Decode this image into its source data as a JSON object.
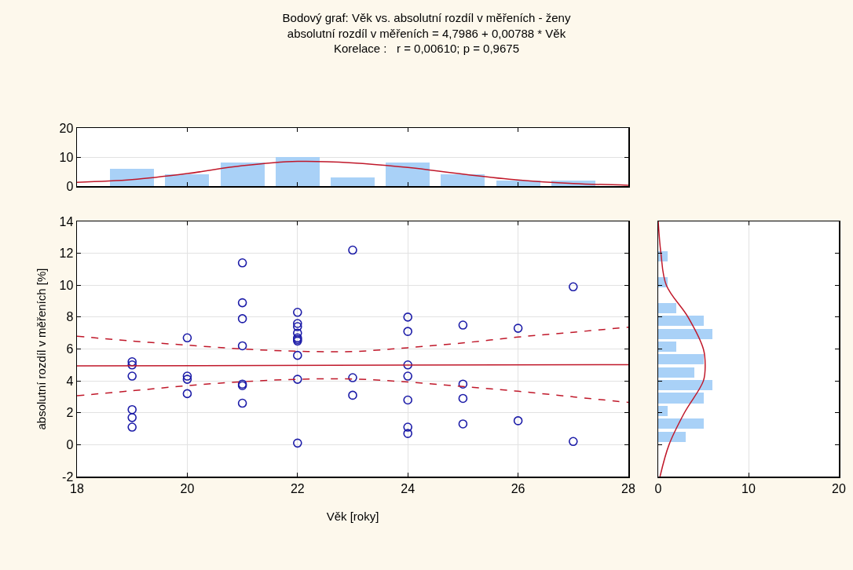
{
  "chart_data": [
    {
      "type": "histogram",
      "title": "Bodový graf: Věk vs. absolutní rozdíl v měřeních - ženy",
      "annotations": [
        "absolutní rozdíl v měřeních = 4,7986 + 0,00788 * Věk",
        "Korelace :   r = 0,00610; p = 0,9675"
      ],
      "bins": [
        18.5,
        19.5,
        20.5,
        21.5,
        22.5,
        23.5,
        24.5,
        25.5,
        26.5,
        27.5
      ],
      "xlim": [
        18,
        28
      ],
      "xticks": [
        {
          "value": 18,
          "label": null
        },
        {
          "value": 20,
          "label": null
        },
        {
          "value": 22,
          "label": null
        },
        {
          "value": 24,
          "label": null
        },
        {
          "value": 26,
          "label": null
        },
        {
          "value": 28,
          "label": null
        }
      ],
      "ylim": [
        0,
        20
      ],
      "yticks": [
        0,
        10,
        20
      ],
      "tick_labels": "y",
      "grid": "y",
      "series": [
        {
          "type": "histogram",
          "color": "#a9d1f7",
          "values": [
            6,
            4,
            8,
            10,
            3,
            8,
            4,
            2,
            2
          ]
        },
        {
          "type": "line",
          "color": "#c0182a",
          "x": [
            18,
            19,
            20,
            21,
            22,
            23,
            24,
            25,
            26,
            27,
            28
          ],
          "values": [
            1.3,
            2.2,
            4.3,
            7.0,
            8.5,
            8.0,
            6.4,
            4.1,
            2.1,
            0.9,
            0.3
          ]
        }
      ]
    },
    {
      "type": "scatter",
      "xlabel": "Věk [roky]",
      "ylabel": "absolutní rozdíl v měřeních [%]",
      "xlim": [
        18,
        28
      ],
      "xticks": [
        18,
        20,
        22,
        24,
        26,
        28
      ],
      "ylim": [
        -2,
        14
      ],
      "yticks": [
        -2,
        0,
        2,
        4,
        6,
        8,
        10,
        12,
        14
      ],
      "grid": true,
      "series": [
        {
          "type": "scatter",
          "marker": "circle",
          "color": "#1c1ca8",
          "x": [
            19,
            19,
            19,
            19,
            19,
            19,
            20,
            20,
            20,
            20,
            21,
            21,
            21,
            21,
            21,
            21,
            21,
            22,
            22,
            22,
            22,
            22,
            22,
            22,
            22,
            22,
            22,
            23,
            23,
            23,
            24,
            24,
            24,
            24,
            24,
            24,
            24,
            25,
            25,
            25,
            25,
            26,
            26,
            27,
            27
          ],
          "values": [
            5.2,
            5.0,
            4.3,
            2.2,
            1.7,
            1.1,
            6.7,
            4.3,
            4.1,
            3.2,
            11.4,
            8.9,
            7.9,
            6.2,
            3.8,
            3.7,
            2.6,
            8.3,
            7.6,
            7.4,
            7.0,
            6.7,
            6.6,
            6.5,
            5.6,
            4.1,
            0.1,
            12.2,
            4.2,
            3.1,
            8.0,
            7.1,
            5.0,
            4.3,
            2.8,
            1.1,
            0.7,
            7.5,
            3.8,
            2.9,
            1.3,
            7.3,
            1.5,
            9.9,
            0.2
          ]
        },
        {
          "type": "line",
          "color": "#c0182a",
          "line_style": "solid",
          "x": [
            18,
            28
          ],
          "values": [
            4.94,
            5.02
          ]
        },
        {
          "type": "line",
          "color": "#c0182a",
          "line_style": "dashed",
          "x": [
            18,
            19,
            20,
            21,
            22,
            23,
            24,
            25,
            26,
            27,
            28
          ],
          "values": [
            6.8,
            6.5,
            6.24,
            6.0,
            5.86,
            5.84,
            6.08,
            6.38,
            6.75,
            7.05,
            7.37
          ]
        },
        {
          "type": "line",
          "color": "#c0182a",
          "line_style": "dashed",
          "x": [
            18,
            19,
            20,
            21,
            22,
            23,
            24,
            25,
            26,
            27,
            28
          ],
          "values": [
            3.07,
            3.38,
            3.7,
            3.95,
            4.1,
            4.12,
            3.93,
            3.65,
            3.35,
            3.0,
            2.65
          ]
        }
      ]
    },
    {
      "type": "histogram",
      "orientation": "horizontal",
      "bins": [
        0.1,
        0.91,
        1.71,
        2.52,
        3.33,
        4.13,
        4.94,
        5.75,
        6.55,
        7.36,
        8.17,
        8.97,
        9.78,
        10.59,
        11.39,
        12.2
      ],
      "xlim": [
        0,
        20
      ],
      "xticks": [
        0,
        10,
        20
      ],
      "ylim": [
        -2,
        14
      ],
      "yticks": [
        {
          "value": -2,
          "label": null
        },
        {
          "value": 0,
          "label": null
        },
        {
          "value": 2,
          "label": null
        },
        {
          "value": 4,
          "label": null
        },
        {
          "value": 6,
          "label": null
        },
        {
          "value": 8,
          "label": null
        },
        {
          "value": 10,
          "label": null
        },
        {
          "value": 12,
          "label": null
        },
        {
          "value": 14,
          "label": null
        }
      ],
      "tick_labels": "x",
      "grid": "x",
      "series": [
        {
          "type": "histogram",
          "color": "#a9d1f7",
          "values": [
            3,
            5,
            1,
            5,
            6,
            4,
            5,
            2,
            6,
            5,
            2,
            0,
            1,
            0,
            1
          ]
        },
        {
          "type": "line",
          "color": "#c0182a",
          "x": [
            -2,
            0,
            2,
            4,
            5,
            6,
            8,
            10,
            12,
            14
          ],
          "values": [
            0.2,
            1.2,
            2.9,
            5.0,
            5.2,
            5.0,
            3.3,
            0.9,
            0.3,
            0
          ]
        }
      ]
    }
  ]
}
